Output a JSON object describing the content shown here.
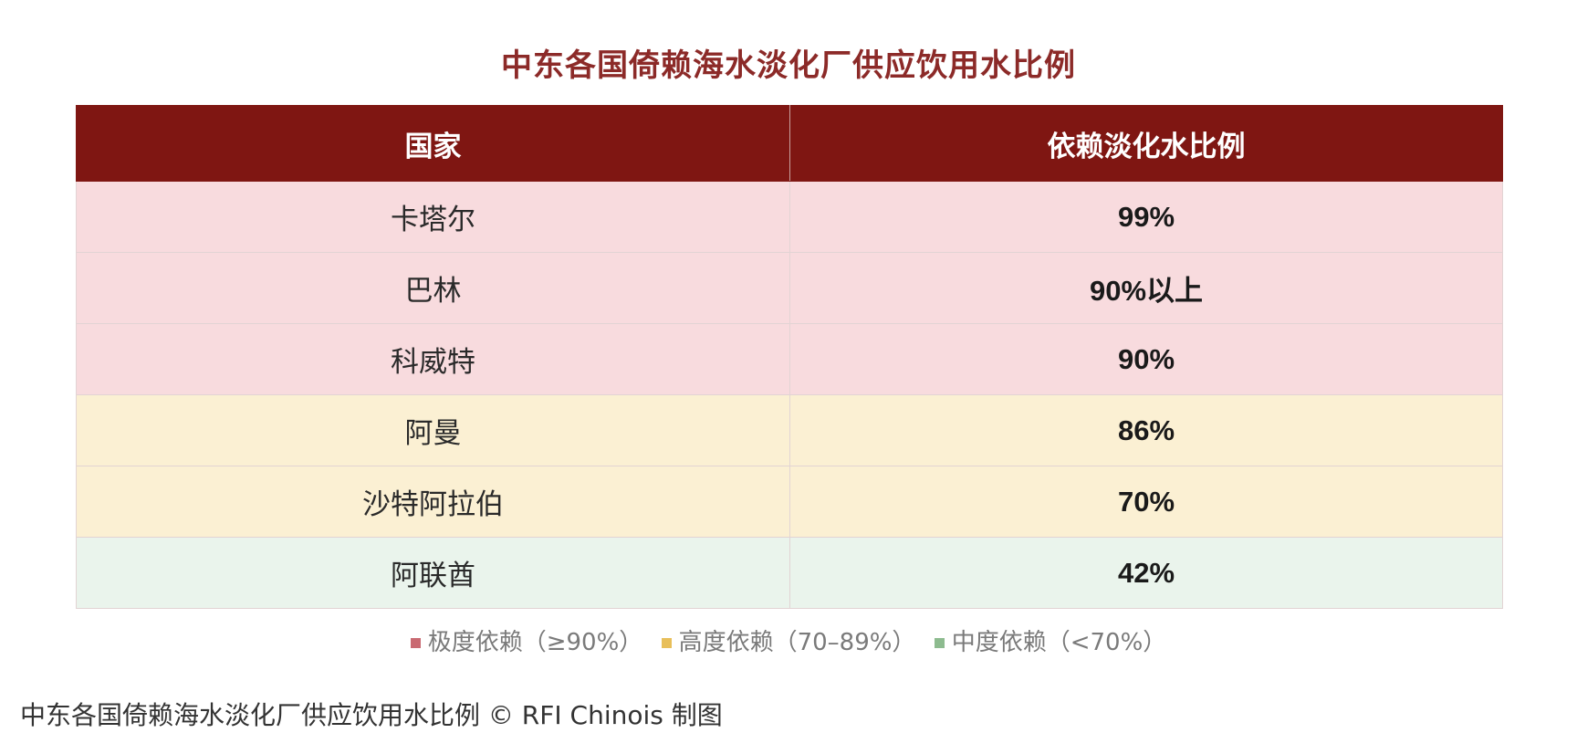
{
  "title": "中东各国倚赖海水淡化厂供应饮用水比例",
  "table": {
    "headers": [
      "国家",
      "依赖淡化水比例"
    ],
    "rows": [
      {
        "country": "卡塔尔",
        "value": "99%",
        "tier": "extreme"
      },
      {
        "country": "巴林",
        "value": "90%以上",
        "tier": "extreme"
      },
      {
        "country": "科威特",
        "value": "90%",
        "tier": "extreme"
      },
      {
        "country": "阿曼",
        "value": "86%",
        "tier": "high"
      },
      {
        "country": "沙特阿拉伯",
        "value": "70%",
        "tier": "high"
      },
      {
        "country": "阿联酋",
        "value": "42%",
        "tier": "moderate"
      }
    ]
  },
  "legend": [
    {
      "label": "极度依赖（≥90%）",
      "color": "#c96a72"
    },
    {
      "label": "高度依赖（70–89%）",
      "color": "#e8bf5a"
    },
    {
      "label": "中度依赖（<70%）",
      "color": "#8dbb8f"
    }
  ],
  "colors": {
    "header": "#7f1612",
    "extreme": "#f8dbde",
    "high": "#fbf0d3",
    "moderate": "#eaf4ec"
  },
  "caption": "中东各国倚赖海水淡化厂供应饮用水比例 © RFI Chinois 制图"
}
